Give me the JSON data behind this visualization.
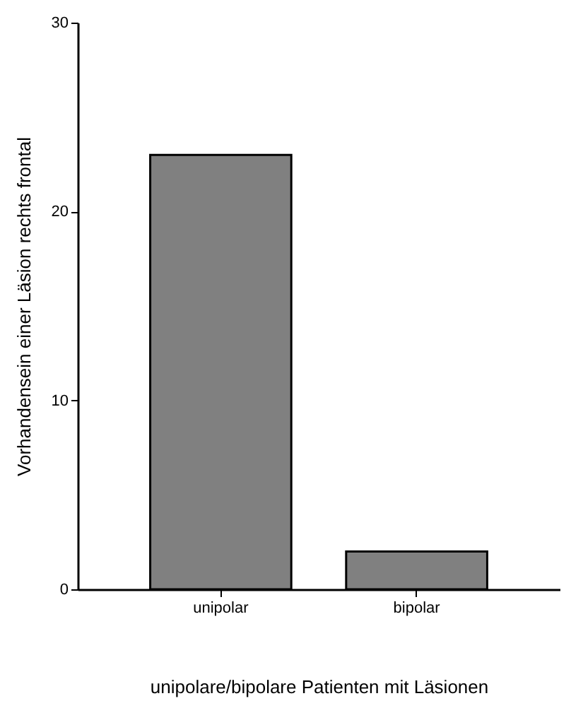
{
  "chart_data": {
    "type": "bar",
    "xlabel": "unipolare/bipolare Patienten mit Läsionen",
    "ylabel": "Vorhandensein einer Läsion rechts frontal",
    "categories": [
      "unipolar",
      "bipolar"
    ],
    "values": [
      23,
      2
    ],
    "color": "#808080",
    "ylim": [
      0,
      30
    ],
    "yticks": [
      0,
      10,
      20,
      30
    ],
    "grid": false
  }
}
